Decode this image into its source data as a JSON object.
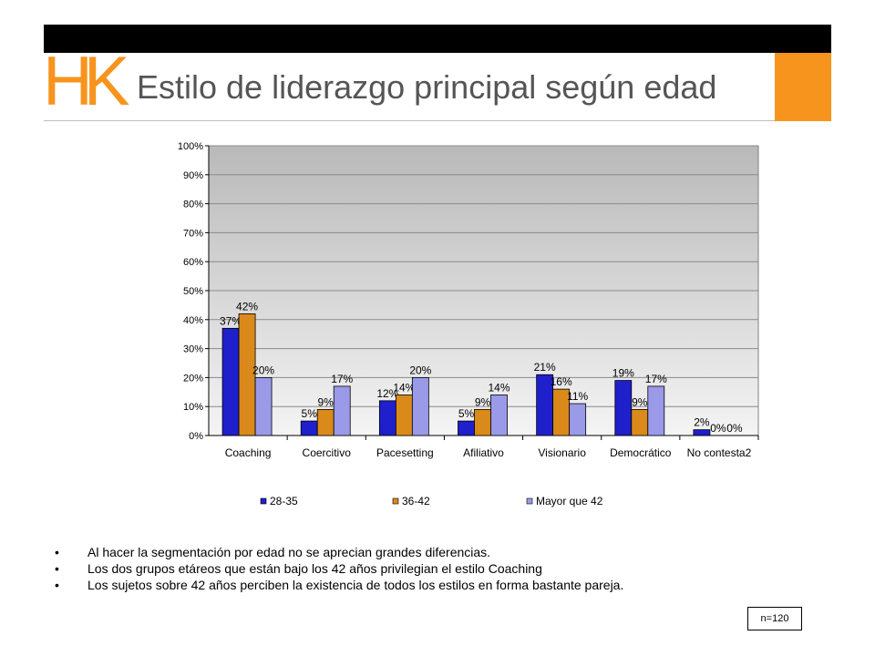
{
  "header": {
    "logo_text": "HK",
    "title": "Estilo de liderazgo principal según edad",
    "accent_color": "#F7941D",
    "bar_color": "#000000"
  },
  "chart_data": {
    "type": "bar",
    "categories": [
      "Coaching",
      "Coercitivo",
      "Pacesetting",
      "Afiliativo",
      "Visionario",
      "Democrático",
      "No contesta2"
    ],
    "series": [
      {
        "name": "28-35",
        "values": [
          37,
          5,
          12,
          5,
          21,
          19,
          2
        ],
        "labels": [
          "37%",
          "5%",
          "12%",
          "5%",
          "21%",
          "19%",
          "2%"
        ],
        "color": "#1F1FCC"
      },
      {
        "name": "36-42",
        "values": [
          42,
          9,
          14,
          9,
          16,
          9,
          0
        ],
        "labels": [
          "42%",
          "9%",
          "14%",
          "9%",
          "16%",
          "9%",
          "0%"
        ],
        "color": "#D98A1A"
      },
      {
        "name": "Mayor que 42",
        "values": [
          20,
          17,
          20,
          14,
          11,
          17,
          0
        ],
        "labels": [
          "20%",
          "17%",
          "20%",
          "14%",
          "11%",
          "17%",
          "0%"
        ],
        "color": "#9A9AE8"
      }
    ],
    "y_ticks": [
      "0%",
      "10%",
      "20%",
      "30%",
      "40%",
      "50%",
      "60%",
      "70%",
      "80%",
      "90%",
      "100%"
    ],
    "ylim": [
      0,
      100
    ],
    "grid": true,
    "legend": "bottom"
  },
  "bullets": [
    "Al hacer la segmentación por edad no se aprecian grandes diferencias.",
    "Los dos grupos etáreos que están bajo los 42 años privilegian el estilo Coaching",
    "Los sujetos sobre 42 años perciben la existencia de todos los estilos en forma bastante pareja."
  ],
  "bullet_symbol": "•",
  "sample_note": "n=120"
}
